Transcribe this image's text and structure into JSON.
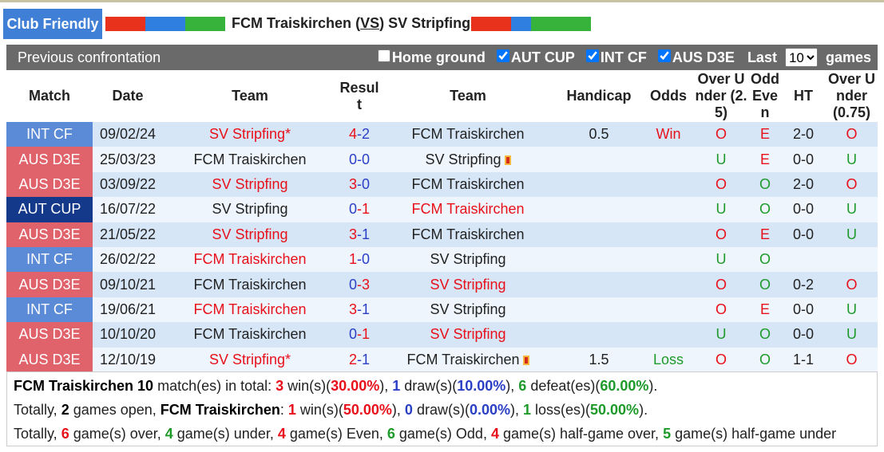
{
  "header": {
    "badge": "Club Friendly",
    "home": "FCM Traiskirchen",
    "vs": [
      "(",
      "VS",
      ")"
    ],
    "away": "SV Stripfing"
  },
  "filter": {
    "title": "Previous confrontation",
    "options": [
      {
        "label": "Home ground",
        "checked": false
      },
      {
        "label": "AUT CUP",
        "checked": true
      },
      {
        "label": "INT CF",
        "checked": true
      },
      {
        "label": "AUS D3E",
        "checked": true
      }
    ],
    "last": "Last",
    "select": "10",
    "games": "games"
  },
  "table": {
    "columns": [
      "Match",
      "Date",
      "Team",
      "Result",
      "Team",
      "Handicap",
      "Odds",
      "Over Under (2.5)",
      "Odd Even",
      "HT",
      "Over Under (0.75)"
    ],
    "rows": [
      {
        "match": "INT CF",
        "color": "#5b8ad6",
        "date": "09/02/24",
        "home": "SV Stripfing*",
        "result": {
          "home": 4,
          "sep": "-",
          "away": 2
        },
        "winner": "home",
        "away": "FCM Traiskirchen",
        "card": null,
        "handicap": 0.5,
        "odds": "Win",
        "ou": "O",
        "oe": "E",
        "ht": "2-0",
        "ou2": "O"
      },
      {
        "match": "AUS D3E",
        "color": "#e0636b",
        "date": "25/03/23",
        "home": "FCM Traiskirchen",
        "result": {
          "home": 0,
          "sep": "-",
          "away": 0
        },
        "winner": null,
        "away": "SV Stripfing",
        "card": "away",
        "handicap": null,
        "odds": null,
        "ou": "U",
        "oe": "E",
        "ht": "0-0",
        "ou2": "U"
      },
      {
        "match": "AUS D3E",
        "color": "#e0636b",
        "date": "03/09/22",
        "home": "SV Stripfing",
        "result": {
          "home": 3,
          "sep": "-",
          "away": 0
        },
        "winner": "home",
        "away": "FCM Traiskirchen",
        "card": null,
        "handicap": null,
        "odds": null,
        "ou": "O",
        "oe": "O",
        "ht": "2-0",
        "ou2": "O"
      },
      {
        "match": "AUT CUP",
        "color": "#15398a",
        "date": "16/07/22",
        "home": "SV Stripfing",
        "result": {
          "home": 0,
          "sep": "-",
          "away": 1
        },
        "winner": "away",
        "away": "FCM Traiskirchen",
        "card": null,
        "handicap": null,
        "odds": null,
        "ou": "U",
        "oe": "O",
        "ht": "0-0",
        "ou2": "U"
      },
      {
        "match": "AUS D3E",
        "color": "#e0636b",
        "date": "21/05/22",
        "home": "SV Stripfing",
        "result": {
          "home": 3,
          "sep": "-",
          "away": 1
        },
        "winner": "home",
        "away": "FCM Traiskirchen",
        "card": null,
        "handicap": null,
        "odds": null,
        "ou": "O",
        "oe": "E",
        "ht": "0-0",
        "ou2": "U"
      },
      {
        "match": "INT CF",
        "color": "#5b8ad6",
        "date": "26/02/22",
        "home": "FCM Traiskirchen",
        "result": {
          "home": 1,
          "sep": "-",
          "away": 0
        },
        "winner": "home",
        "away": "SV Stripfing",
        "card": null,
        "handicap": null,
        "odds": null,
        "ou": "U",
        "oe": "O",
        "ht": null,
        "ou2": null
      },
      {
        "match": "AUS D3E",
        "color": "#e0636b",
        "date": "09/10/21",
        "home": "FCM Traiskirchen",
        "result": {
          "home": 0,
          "sep": "-",
          "away": 3
        },
        "winner": "away",
        "away": "SV Stripfing",
        "card": null,
        "handicap": null,
        "odds": null,
        "ou": "O",
        "oe": "O",
        "ht": "0-2",
        "ou2": "O"
      },
      {
        "match": "INT CF",
        "color": "#5b8ad6",
        "date": "19/06/21",
        "home": "FCM Traiskirchen",
        "result": {
          "home": 3,
          "sep": "-",
          "away": 1
        },
        "winner": "home",
        "away": "SV Stripfing",
        "card": null,
        "handicap": null,
        "odds": null,
        "ou": "O",
        "oe": "E",
        "ht": "0-0",
        "ou2": "U"
      },
      {
        "match": "AUS D3E",
        "color": "#e0636b",
        "date": "10/10/20",
        "home": "FCM Traiskirchen",
        "result": {
          "home": 0,
          "sep": "-",
          "away": 1
        },
        "winner": "away",
        "away": "SV Stripfing",
        "card": null,
        "handicap": null,
        "odds": null,
        "ou": "U",
        "oe": "O",
        "ht": "0-0",
        "ou2": "U"
      },
      {
        "match": "AUS D3E",
        "color": "#e0636b",
        "date": "12/10/19",
        "home": "SV Stripfing*",
        "result": {
          "home": 2,
          "sep": "-",
          "away": 1
        },
        "winner": "home",
        "away": "FCM Traiskirchen",
        "card": "away",
        "handicap": 1.5,
        "odds": "Loss",
        "ou": "O",
        "oe": "O",
        "ht": "1-1",
        "ou2": "O"
      }
    ]
  },
  "summary": [
    [
      {
        "text": "FCM Traiskirchen 10",
        "style": "b"
      },
      {
        "text": " match(es) in total: ",
        "style": "n"
      },
      {
        "text": "3",
        "style": "r"
      },
      {
        "text": " win(s)(",
        "style": "n"
      },
      {
        "text": "30.00%",
        "style": "r"
      },
      {
        "text": "), ",
        "style": "n"
      },
      {
        "text": "1",
        "style": "bl"
      },
      {
        "text": " draw(s)(",
        "style": "n"
      },
      {
        "text": "10.00%",
        "style": "bl"
      },
      {
        "text": "), ",
        "style": "n"
      },
      {
        "text": "6",
        "style": "g"
      },
      {
        "text": " defeat(es)(",
        "style": "n"
      },
      {
        "text": "60.00%",
        "style": "g"
      },
      {
        "text": ").",
        "style": "n"
      }
    ],
    [
      {
        "text": "Totally, ",
        "style": "n"
      },
      {
        "text": "2",
        "style": "b"
      },
      {
        "text": " games open, ",
        "style": "n"
      },
      {
        "text": "FCM Traiskirchen",
        "style": "b"
      },
      {
        "text": ": ",
        "style": "n"
      },
      {
        "text": "1",
        "style": "r"
      },
      {
        "text": " win(s)(",
        "style": "n"
      },
      {
        "text": "50.00%",
        "style": "r"
      },
      {
        "text": "), ",
        "style": "n"
      },
      {
        "text": "0",
        "style": "bl"
      },
      {
        "text": " draw(s)(",
        "style": "n"
      },
      {
        "text": "0.00%",
        "style": "bl"
      },
      {
        "text": "), ",
        "style": "n"
      },
      {
        "text": "1",
        "style": "g"
      },
      {
        "text": " loss(es)(",
        "style": "n"
      },
      {
        "text": "50.00%",
        "style": "g"
      },
      {
        "text": ").",
        "style": "n"
      }
    ],
    [
      {
        "text": "Totally, ",
        "style": "n"
      },
      {
        "text": "6",
        "style": "r"
      },
      {
        "text": " game(s) over, ",
        "style": "n"
      },
      {
        "text": "4",
        "style": "g"
      },
      {
        "text": " game(s) under, ",
        "style": "n"
      },
      {
        "text": "4",
        "style": "r"
      },
      {
        "text": " game(s) Even, ",
        "style": "n"
      },
      {
        "text": "6",
        "style": "g"
      },
      {
        "text": " game(s) Odd, ",
        "style": "n"
      },
      {
        "text": "4",
        "style": "r"
      },
      {
        "text": " game(s) half-game over, ",
        "style": "n"
      },
      {
        "text": "5",
        "style": "g"
      },
      {
        "text": " game(s) half-game under",
        "style": "n"
      }
    ]
  ]
}
